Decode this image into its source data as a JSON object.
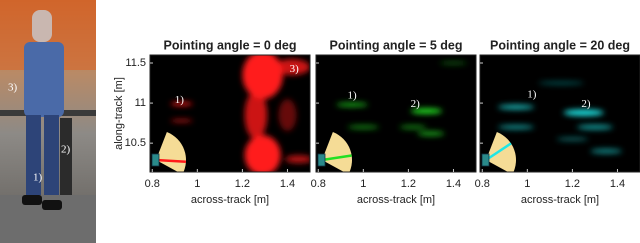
{
  "figure": {
    "photo": {
      "labels": [
        "3)",
        "2)",
        "1)"
      ]
    }
  },
  "chart_data": [
    {
      "type": "heatmap",
      "title": "Pointing angle = 0 deg",
      "xlabel": "across-track [m]",
      "ylabel": "along-track [m]",
      "color": "#ff1a1a",
      "xlim": [
        0.79,
        1.5
      ],
      "ylim": [
        10.14,
        11.6
      ],
      "xticks": [
        0.8,
        1,
        1.2,
        1.4
      ],
      "yticks": [
        10.5,
        11,
        11.5
      ],
      "annotations": [
        {
          "text": "1)"
        },
        {
          "text": "3)"
        }
      ]
    },
    {
      "type": "heatmap",
      "title": "Pointing angle = 5 deg",
      "xlabel": "across-track [m]",
      "color": "#22e022",
      "xlim": [
        0.79,
        1.5
      ],
      "ylim": [
        10.14,
        11.6
      ],
      "xticks": [
        0.8,
        1,
        1.2,
        1.4
      ],
      "yticks": [
        10.5,
        11,
        11.5
      ],
      "annotations": [
        {
          "text": "1)"
        },
        {
          "text": "2)"
        }
      ]
    },
    {
      "type": "heatmap",
      "title": "Pointing angle = 20 deg",
      "xlabel": "across-track [m]",
      "color": "#1ee6e6",
      "xlim": [
        0.79,
        1.5
      ],
      "ylim": [
        10.14,
        11.6
      ],
      "xticks": [
        0.8,
        1,
        1.2,
        1.4
      ],
      "yticks": [
        10.5,
        11,
        11.5
      ],
      "annotations": [
        {
          "text": "1)"
        },
        {
          "text": "2)"
        }
      ]
    }
  ]
}
